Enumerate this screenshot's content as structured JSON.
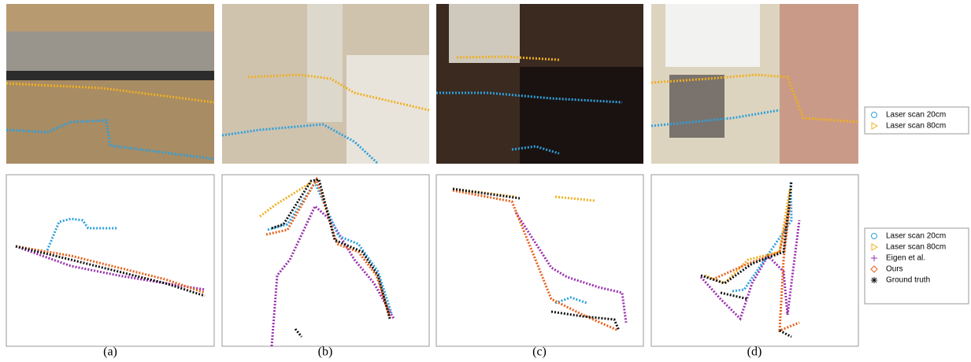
{
  "figure": {
    "photo_legend": [
      "Laser scan 20cm",
      "Laser scan 80cm"
    ],
    "plot_legend": [
      "Laser scan 20cm",
      "Laser scan 80cm",
      "Eigen et al.",
      "Ours",
      "Ground truth"
    ],
    "captions": [
      "(a)",
      "(b)",
      "(c)",
      "(d)"
    ]
  }
}
